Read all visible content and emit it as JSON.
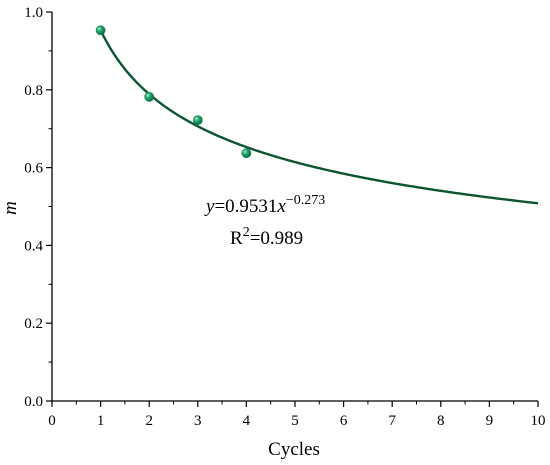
{
  "chart_data": {
    "type": "scatter",
    "xlabel": "Cycles",
    "ylabel": "m",
    "xlim": [
      0,
      10
    ],
    "ylim": [
      0.0,
      1.0
    ],
    "x_ticks": [
      "0",
      "1",
      "2",
      "3",
      "4",
      "5",
      "6",
      "7",
      "8",
      "9",
      "10"
    ],
    "y_ticks": [
      "0.0",
      "0.2",
      "0.4",
      "0.6",
      "0.8",
      "1.0"
    ],
    "grid": false,
    "points": [
      {
        "x": 1,
        "y": 0.953
      },
      {
        "x": 2,
        "y": 0.782
      },
      {
        "x": 3,
        "y": 0.722
      },
      {
        "x": 4,
        "y": 0.637
      }
    ],
    "fit": {
      "a": 0.9531,
      "b": -0.273,
      "x_range": [
        1,
        10
      ],
      "equation": {
        "y": "y",
        "eq_a": "=0.9531",
        "x": "x",
        "exponent": "−0.273"
      },
      "r2": {
        "r": "R",
        "sup": "2",
        "value": "=0.989"
      }
    },
    "colors": {
      "line": "#0d5530",
      "marker": "#13865a",
      "marker_highlight": "#7fd6ad"
    }
  }
}
